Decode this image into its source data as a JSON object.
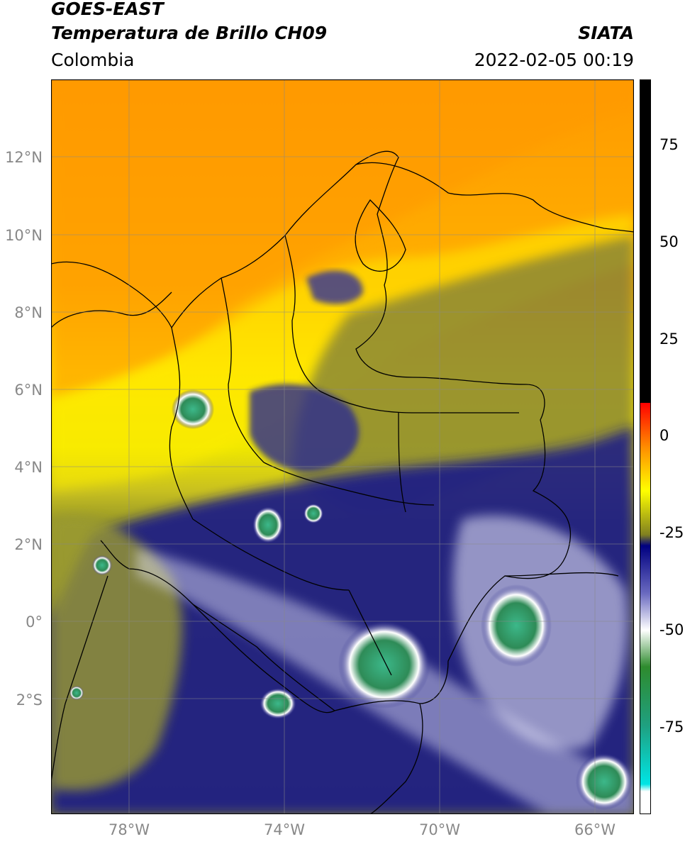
{
  "header": {
    "title_line1": "GOES-EAST",
    "title_line2": "Temperatura de Brillo CH09",
    "region": "Colombia",
    "source": "SIATA",
    "timestamp": "2022-02-05 00:19"
  },
  "map": {
    "lat_labels": [
      "12°N",
      "10°N",
      "8°N",
      "6°N",
      "4°N",
      "2°N",
      "0°",
      "2°S"
    ],
    "lon_labels": [
      "78°W",
      "74°W",
      "70°W",
      "66°W"
    ],
    "extent_lon": [
      -80.5,
      -65.5
    ],
    "extent_lat": [
      -5,
      14
    ],
    "gridlines": true
  },
  "colorbar": {
    "ticks": [
      "75",
      "50",
      "25",
      "0",
      "-25",
      "-50",
      "-75"
    ],
    "range": [
      -95,
      90
    ],
    "colors": {
      "black": "#000000",
      "red": "#ff0000",
      "orange": "#ff8c00",
      "yellow": "#ffff00",
      "olive": "#808020",
      "navy": "#000080",
      "white": "#ffffff",
      "green": "#2e8b2e",
      "cyan": "#00e5e5"
    }
  }
}
